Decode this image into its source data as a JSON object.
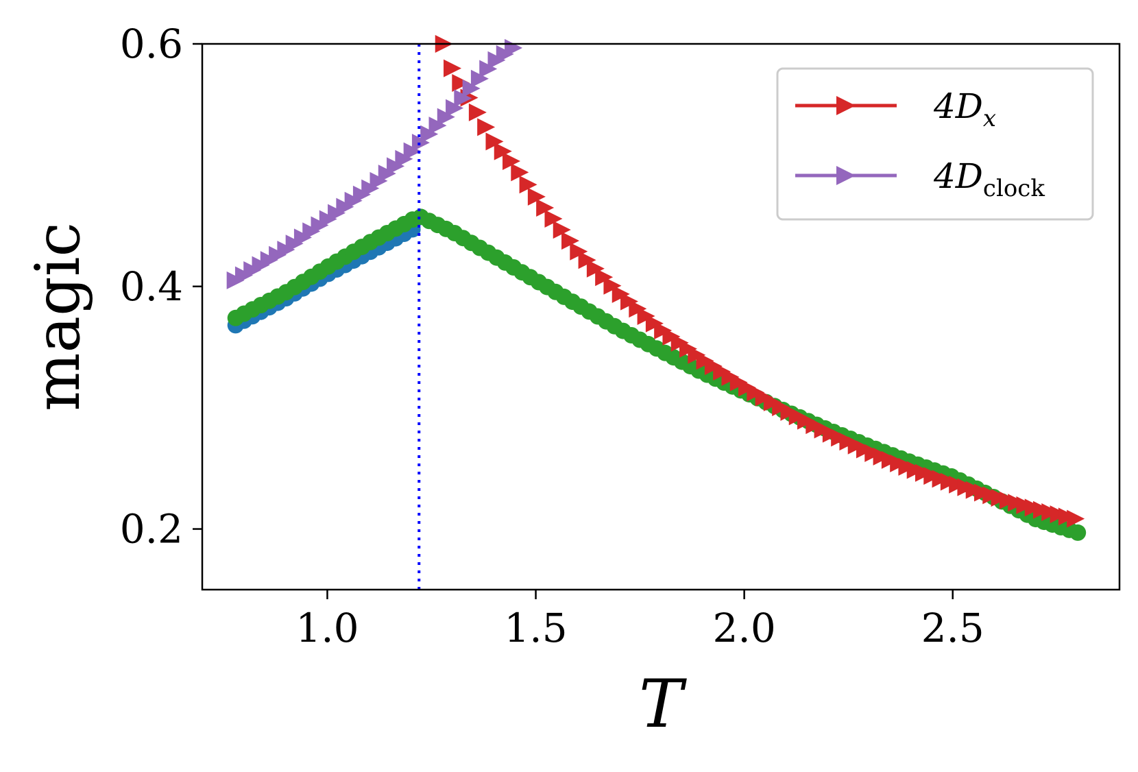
{
  "chart_data": {
    "type": "scatter",
    "xlabel": "T",
    "ylabel": "magic",
    "xlim": [
      0.7,
      2.9
    ],
    "ylim": [
      0.15,
      0.6
    ],
    "x_ticks": [
      "1.0",
      "1.5",
      "2.0",
      "2.5"
    ],
    "y_ticks": [
      "0.2",
      "0.4",
      "0.6"
    ],
    "critical_T": 1.22,
    "legend": {
      "placement": "top-right",
      "entries": [
        {
          "base": "4D",
          "sub": "x",
          "color": "#d62728",
          "marker": "triangle-right"
        },
        {
          "base": "4D",
          "sub": "clock",
          "color": "#9467bd",
          "marker": "triangle-right"
        }
      ]
    },
    "series": [
      {
        "name": "4D_x",
        "color": "#d62728",
        "marker": "triangle-right",
        "x": [
          1.28,
          1.3,
          1.35,
          1.4,
          1.45,
          1.5,
          1.6,
          1.7,
          1.8,
          1.9,
          2.0,
          2.1,
          2.2,
          2.3,
          2.4,
          2.5,
          2.6,
          2.7,
          2.8
        ],
        "y": [
          0.6,
          0.58,
          0.55,
          0.52,
          0.5,
          0.475,
          0.43,
          0.395,
          0.365,
          0.34,
          0.318,
          0.298,
          0.28,
          0.264,
          0.25,
          0.238,
          0.227,
          0.217,
          0.208
        ]
      },
      {
        "name": "4D_clock",
        "color": "#9467bd",
        "marker": "triangle-right",
        "x": [
          0.78,
          0.9,
          1.0,
          1.1,
          1.2,
          1.3,
          1.4,
          1.46
        ],
        "y": [
          0.405,
          0.43,
          0.455,
          0.48,
          0.51,
          0.545,
          0.585,
          0.6
        ]
      },
      {
        "name": "",
        "color": "#1f77b4",
        "marker": "circle",
        "x": [
          0.78,
          0.9,
          1.0,
          1.1,
          1.22
        ],
        "y": [
          0.368,
          0.39,
          0.41,
          0.428,
          0.45
        ]
      },
      {
        "name": "",
        "color": "#2ca02c",
        "marker": "circle",
        "x": [
          0.78,
          0.9,
          1.0,
          1.1,
          1.22,
          1.3,
          1.4,
          1.5,
          1.6,
          1.7,
          1.8,
          1.9,
          2.0,
          2.1,
          2.2,
          2.3,
          2.4,
          2.5,
          2.6,
          2.7,
          2.8
        ],
        "y": [
          0.374,
          0.395,
          0.416,
          0.436,
          0.458,
          0.445,
          0.425,
          0.405,
          0.385,
          0.365,
          0.347,
          0.329,
          0.313,
          0.297,
          0.282,
          0.268,
          0.255,
          0.243,
          0.226,
          0.208,
          0.197
        ]
      }
    ]
  }
}
